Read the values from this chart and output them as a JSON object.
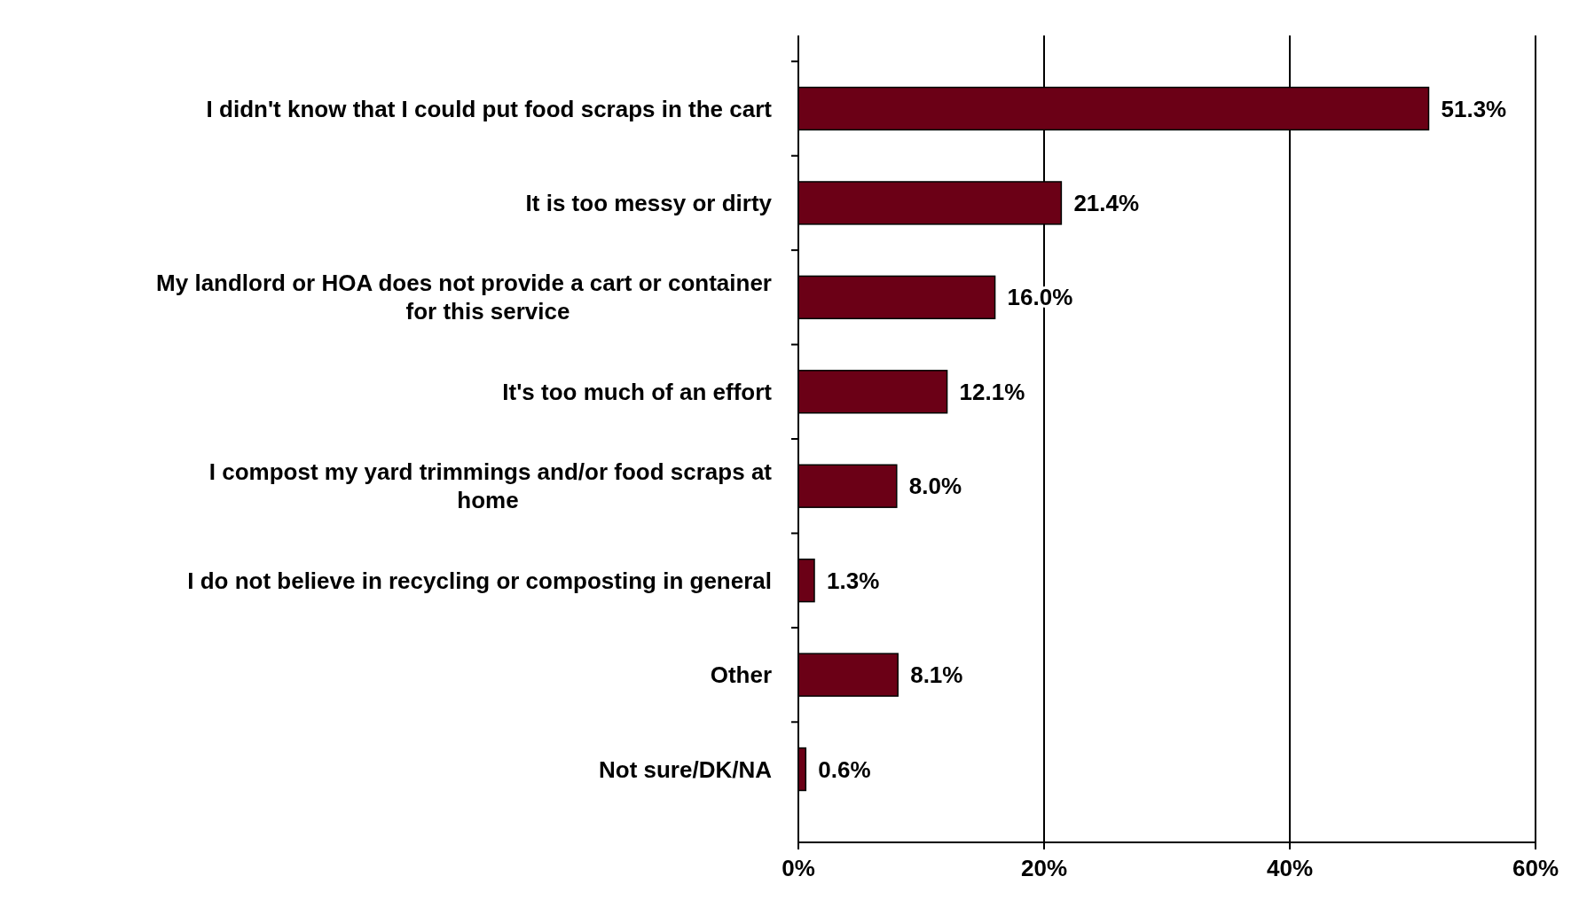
{
  "chart_data": {
    "type": "bar",
    "orientation": "horizontal",
    "categories": [
      "I didn't know that I could put food scraps in the cart",
      "It is too messy or dirty",
      "My landlord or HOA does not provide a cart or container\nfor this service",
      "It's too much of an effort",
      "I compost my yard trimmings and/or food scraps at\nhome",
      "I do not believe in recycling or composting in general",
      "Other",
      "Not sure/DK/NA"
    ],
    "values": [
      51.3,
      21.4,
      16.0,
      12.1,
      8.0,
      1.3,
      8.1,
      0.6
    ],
    "value_labels": [
      "51.3%",
      "21.4%",
      "16.0%",
      "12.1%",
      "8.0%",
      "1.3%",
      "8.1%",
      "0.6%"
    ],
    "color": "#6b0016",
    "xlim": [
      0,
      60
    ],
    "xticks": [
      {
        "value": 0,
        "label": "0%"
      },
      {
        "value": 20,
        "label": "20%"
      },
      {
        "value": 40,
        "label": "40%"
      },
      {
        "value": 60,
        "label": "60%"
      }
    ],
    "grid": "x"
  }
}
